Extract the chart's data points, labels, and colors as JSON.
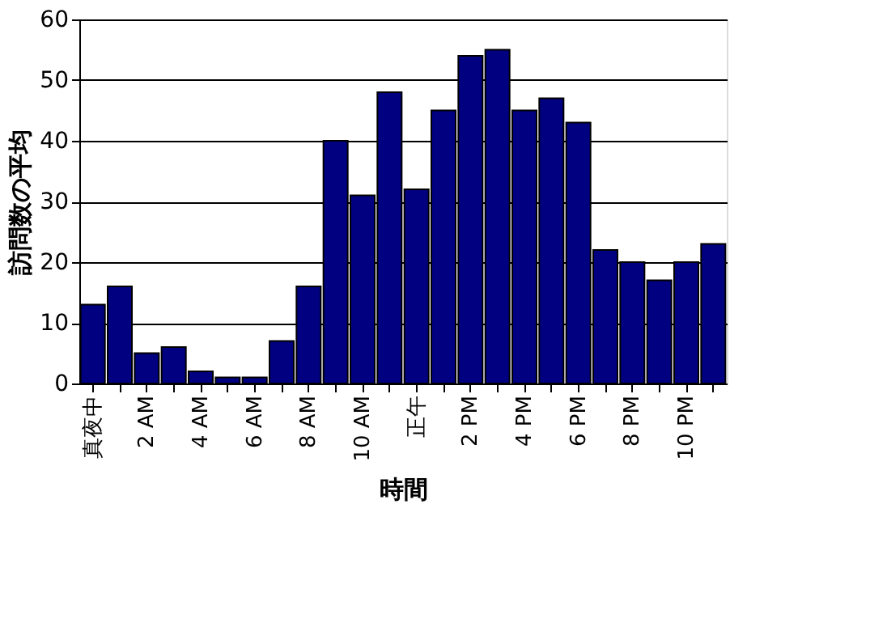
{
  "chart_data": {
    "type": "bar",
    "xlabel": "時間",
    "ylabel": "訪問数の平均",
    "categories": [
      "真夜中",
      null,
      "2 AM",
      null,
      "4 AM",
      null,
      "6 AM",
      null,
      "8 AM",
      null,
      "10 AM",
      null,
      "正午",
      null,
      "2 PM",
      null,
      "4 PM",
      null,
      "6 PM",
      null,
      "8 PM",
      null,
      "10 PM",
      null
    ],
    "values": [
      13,
      16,
      5,
      6,
      2,
      1,
      1,
      7,
      16,
      40,
      31,
      48,
      32,
      45,
      54,
      55,
      45,
      47,
      43,
      22,
      20,
      17,
      20,
      23
    ],
    "color": "#000080",
    "ylim": [
      0,
      60
    ],
    "yticks": [
      0,
      10,
      20,
      30,
      40,
      50,
      60
    ],
    "grid": "y"
  }
}
